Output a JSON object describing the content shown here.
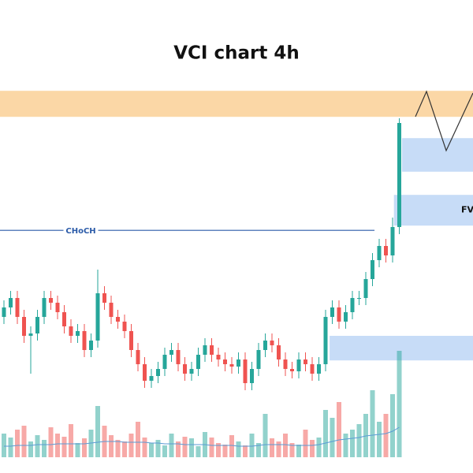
{
  "chart_data": {
    "type": "candlestick",
    "title": "VCI chart 4h",
    "ylim": [
      0,
      100
    ],
    "open": [
      33,
      35,
      37,
      33,
      29,
      29.5,
      33,
      37,
      36,
      34,
      31,
      29,
      30,
      26,
      28,
      38,
      36,
      33,
      32,
      30,
      26,
      23,
      19.5,
      20.5,
      22,
      25,
      26,
      23,
      21,
      22,
      25,
      27,
      25,
      24,
      23,
      22.5,
      24,
      19,
      22,
      26,
      28,
      27,
      24,
      22,
      21.5,
      24,
      23,
      21,
      23,
      33,
      35,
      32,
      34,
      37,
      37,
      41,
      45,
      48,
      46,
      52
    ],
    "high": [
      36.5,
      38.5,
      38.5,
      34.5,
      31,
      34.5,
      38.5,
      38.5,
      37.5,
      35.5,
      32.5,
      31.5,
      31.5,
      29.5,
      43,
      39.5,
      37.5,
      34.5,
      33.5,
      31.5,
      27.5,
      24.5,
      22,
      23.5,
      26.5,
      27.5,
      27.5,
      24.5,
      23.5,
      26.5,
      28.5,
      28.5,
      26.5,
      25.5,
      24.5,
      25.5,
      25.5,
      23.5,
      27.5,
      29.5,
      29.5,
      28.5,
      25.5,
      23.5,
      25.5,
      25.5,
      24.5,
      24.5,
      34.5,
      36.5,
      36.5,
      35.5,
      38.5,
      38.5,
      42.5,
      46.5,
      49.5,
      49.5,
      54,
      75
    ],
    "low": [
      31.5,
      33.5,
      31.5,
      27.5,
      21,
      28,
      31.5,
      34.5,
      32.5,
      29.5,
      27.5,
      27.5,
      24.5,
      24.5,
      26.5,
      34.5,
      31.5,
      30.5,
      28.5,
      24.5,
      21.5,
      18,
      18,
      19,
      20.5,
      23.5,
      21.5,
      19.5,
      19.5,
      20.5,
      23.5,
      23.5,
      22.5,
      21.5,
      21,
      21,
      17.5,
      17.5,
      20.5,
      24.5,
      25.5,
      22.5,
      20.5,
      20,
      20,
      21.5,
      19.5,
      19.5,
      21.5,
      31.5,
      30.5,
      30.5,
      32.5,
      35.5,
      35.5,
      39.5,
      43.5,
      44.5,
      44.5,
      50.5
    ],
    "close": [
      35,
      37,
      33,
      29,
      29.5,
      33,
      37,
      36,
      34,
      31,
      29,
      30,
      26,
      28,
      38,
      36,
      33,
      32,
      30,
      26,
      23,
      19.5,
      20.5,
      22,
      25,
      26,
      23,
      21,
      22,
      25,
      27,
      25,
      24,
      23,
      22.5,
      24,
      19,
      22,
      26,
      28,
      27,
      24,
      22,
      21.5,
      24,
      23,
      21,
      23,
      33,
      35,
      32,
      34,
      37,
      37,
      41,
      45,
      48,
      46,
      52,
      74
    ],
    "up_color": "#26a69a",
    "down_color": "#ef5350",
    "volume": [
      30,
      25,
      35,
      40,
      20,
      28,
      22,
      38,
      30,
      26,
      42,
      18,
      24,
      35,
      65,
      40,
      28,
      22,
      20,
      30,
      45,
      25,
      18,
      22,
      15,
      30,
      20,
      26,
      24,
      14,
      32,
      25,
      18,
      16,
      28,
      20,
      15,
      30,
      18,
      55,
      24,
      20,
      30,
      18,
      16,
      35,
      22,
      25,
      60,
      50,
      70,
      30,
      35,
      42,
      55,
      85,
      45,
      55,
      80,
      135
    ],
    "volume_ylim": [
      0,
      150
    ],
    "volume_ma": [
      14,
      14,
      15,
      15,
      15,
      16,
      16,
      16,
      17,
      17,
      17,
      17,
      17,
      18,
      19,
      20,
      20,
      20,
      19,
      19,
      19,
      19,
      18,
      18,
      17,
      17,
      17,
      16,
      16,
      16,
      16,
      15,
      15,
      15,
      15,
      14,
      14,
      14,
      15,
      16,
      16,
      16,
      16,
      15,
      15,
      15,
      15,
      16,
      18,
      20,
      22,
      23,
      24,
      25,
      27,
      28,
      29,
      30,
      33,
      38
    ],
    "volume_ma_color": "#5b9bd5",
    "zones": [
      {
        "from": 0,
        "top": 80.8,
        "bottom": 75.3,
        "color": "#fbd7a6"
      },
      {
        "from": 59.4,
        "top": 70.8,
        "bottom": 63.7,
        "color": "#c7dcf7"
      },
      {
        "from": 58.2,
        "top": 58.8,
        "bottom": 52.3,
        "color": "#c7dcf7",
        "label": "FV"
      },
      {
        "from": 48.6,
        "top": 29,
        "bottom": 23.8,
        "color": "#c7dcf7"
      }
    ],
    "choch": {
      "label": "CHoCH",
      "value": 51.3,
      "from": 0,
      "to": 55.3,
      "color": "#2a5aa8"
    }
  }
}
